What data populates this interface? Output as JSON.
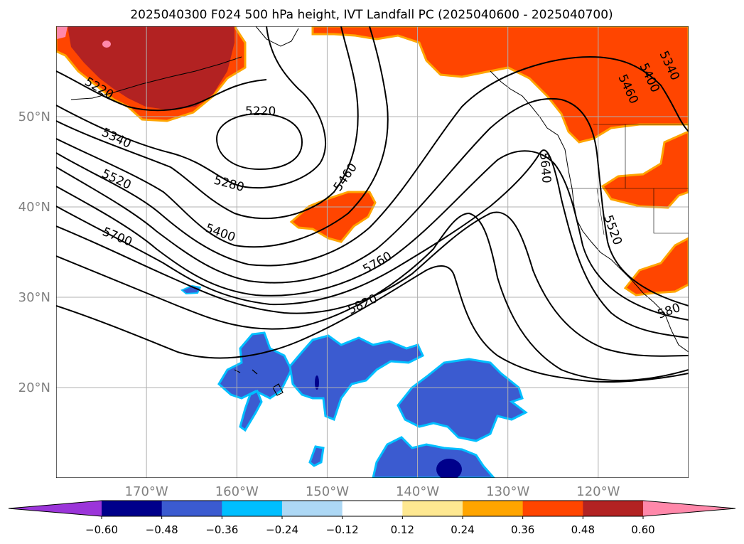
{
  "figure": {
    "title": "2025040300 F024 500 hPa height, IVT Landfall PC (2025040600 - 2025040700)"
  },
  "map": {
    "extent": {
      "lon_min": -180,
      "lon_max": -110,
      "lat_min": 10,
      "lat_max": 60
    },
    "lat_ticks": [
      {
        "value": 20,
        "label": "20°N"
      },
      {
        "value": 30,
        "label": "30°N"
      },
      {
        "value": 40,
        "label": "40°N"
      },
      {
        "value": 50,
        "label": "50°N"
      }
    ],
    "lon_ticks": [
      {
        "value": -170,
        "label": "170°W"
      },
      {
        "value": -160,
        "label": "160°W"
      },
      {
        "value": -150,
        "label": "150°W"
      },
      {
        "value": -140,
        "label": "140°W"
      },
      {
        "value": -130,
        "label": "130°W"
      },
      {
        "value": -120,
        "label": "120°W"
      }
    ],
    "grid": true,
    "contour_labels": [
      "5220",
      "5220",
      "5340",
      "5280",
      "5460",
      "5520",
      "5400",
      "5700",
      "5640",
      "5520",
      "5760",
      "5820",
      "5460",
      "5400",
      "5340",
      "580"
    ]
  },
  "colorbar": {
    "tick_labels": [
      "−0.60",
      "−0.48",
      "−0.36",
      "−0.24",
      "−0.12",
      "0.12",
      "0.24",
      "0.36",
      "0.48",
      "0.60"
    ],
    "colors": [
      "#9b35d9",
      "#00008b",
      "#3b5bd0",
      "#00bfff",
      "#add8f5",
      "#ffffff",
      "#fee891",
      "#ffa500",
      "#ff4500",
      "#b22222",
      "#ff88aa"
    ],
    "extend": "both"
  },
  "colors": {
    "contour": "#000000",
    "grid": "#b0b0b0",
    "tick_label": "#808080",
    "coast": "#000000"
  }
}
